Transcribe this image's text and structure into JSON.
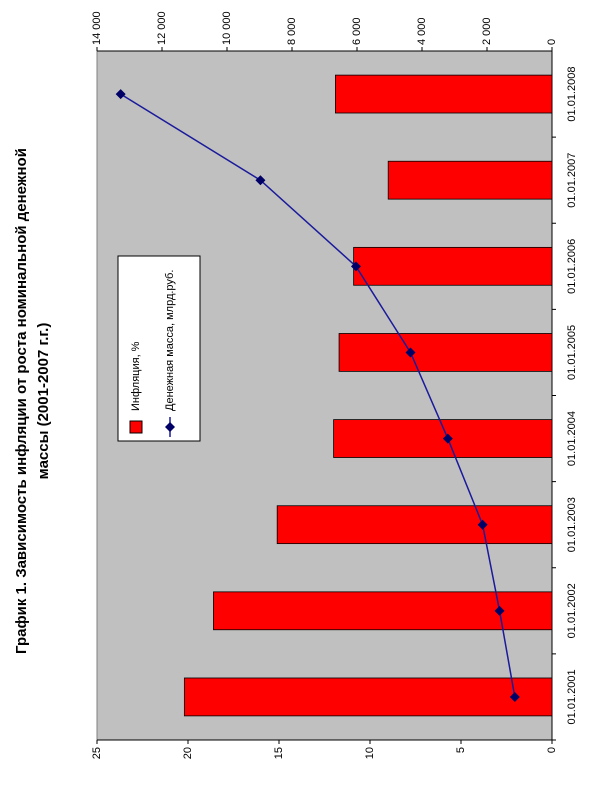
{
  "chart_data": {
    "type": "bar_line",
    "title": [
      "График 1. Зависимость инфляции от  роста номинальной денежной",
      "массы (2001-2007 г.г.)"
    ],
    "categories": [
      "01.01.2001",
      "01.01.2002",
      "01.01.2003",
      "01.01.2004",
      "01.01.2005",
      "01.01.2006",
      "01.01.2007",
      "01.01.2008"
    ],
    "series": [
      {
        "name": "Инфляция, %",
        "type": "bar",
        "color": "#ff0000",
        "values": [
          20.2,
          18.6,
          15.1,
          12.0,
          11.7,
          10.9,
          9.0,
          11.9
        ]
      },
      {
        "name": "Денежная масса, млрд.руб.",
        "type": "line",
        "axis": "y2",
        "color": "#1a1a9c",
        "values": [
          1144,
          1613,
          2135,
          3205,
          4354,
          6032,
          8971,
          13272
        ]
      }
    ],
    "ylim": [
      0,
      25
    ],
    "yticks": [
      0,
      5,
      10,
      15,
      20,
      25
    ],
    "y2lim": [
      0,
      14000
    ],
    "y2ticks": [
      0,
      {
        "value": 2000,
        "label": "2 000"
      },
      {
        "value": 4000,
        "label": "4 000"
      },
      {
        "value": 6000,
        "label": "6 000"
      },
      {
        "value": 8000,
        "label": "8 000"
      },
      {
        "value": 10000,
        "label": "10 000"
      },
      {
        "value": 12000,
        "label": "12 000"
      },
      {
        "value": 14000,
        "label": "14 000"
      }
    ],
    "plot_background": "#c0c0c0"
  }
}
